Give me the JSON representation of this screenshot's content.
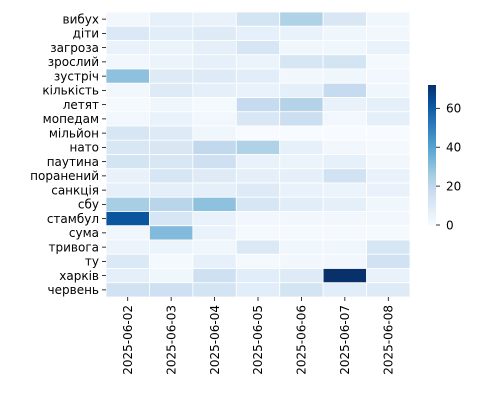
{
  "chart_data": {
    "type": "heatmap",
    "title": "",
    "xlabel": "",
    "ylabel": "",
    "x": [
      "2025-06-02",
      "2025-06-03",
      "2025-06-04",
      "2025-06-05",
      "2025-06-06",
      "2025-06-07",
      "2025-06-08"
    ],
    "y": [
      "вибух",
      "діти",
      "загроза",
      "зрослий",
      "зустріч",
      "кількість",
      "летят",
      "мопедам",
      "мільйон",
      "нато",
      "паутина",
      "поранений",
      "санкція",
      "сбу",
      "стамбул",
      "сума",
      "тривога",
      "ту",
      "харків",
      "червень"
    ],
    "values": [
      [
        2,
        6,
        5,
        13,
        23,
        11,
        3
      ],
      [
        10,
        8,
        9,
        6,
        5,
        3,
        2
      ],
      [
        5,
        4,
        7,
        12,
        3,
        3,
        5
      ],
      [
        2,
        4,
        6,
        4,
        12,
        13,
        1
      ],
      [
        30,
        9,
        9,
        8,
        2,
        3,
        2
      ],
      [
        2,
        9,
        7,
        5,
        7,
        18,
        3
      ],
      [
        1,
        3,
        1,
        18,
        22,
        5,
        7
      ],
      [
        2,
        5,
        2,
        11,
        16,
        2,
        7
      ],
      [
        12,
        9,
        3,
        0,
        0,
        0,
        0
      ],
      [
        11,
        11,
        19,
        23,
        6,
        2,
        1
      ],
      [
        13,
        11,
        15,
        5,
        4,
        6,
        2
      ],
      [
        5,
        12,
        9,
        7,
        7,
        14,
        5
      ],
      [
        6,
        7,
        7,
        9,
        5,
        4,
        5
      ],
      [
        25,
        21,
        30,
        12,
        8,
        7,
        3
      ],
      [
        62,
        12,
        5,
        2,
        2,
        2,
        2
      ],
      [
        3,
        32,
        5,
        1,
        1,
        1,
        1
      ],
      [
        4,
        4,
        3,
        10,
        3,
        3,
        12
      ],
      [
        10,
        1,
        6,
        1,
        2,
        2,
        14
      ],
      [
        7,
        3,
        15,
        8,
        9,
        72,
        5
      ],
      [
        14,
        15,
        13,
        8,
        13,
        8,
        9
      ]
    ],
    "color_scale": {
      "colormap": "Blues",
      "vmin": 0,
      "vmax": 72,
      "ticks": [
        0,
        20,
        40,
        60
      ],
      "stops": [
        "#f7fbff",
        "#deebf7",
        "#c6dbef",
        "#9ecae1",
        "#6baed6",
        "#4292c6",
        "#2171b5",
        "#08519c",
        "#08306b"
      ]
    },
    "cell_border_color": "#ffffff",
    "grid": false
  }
}
